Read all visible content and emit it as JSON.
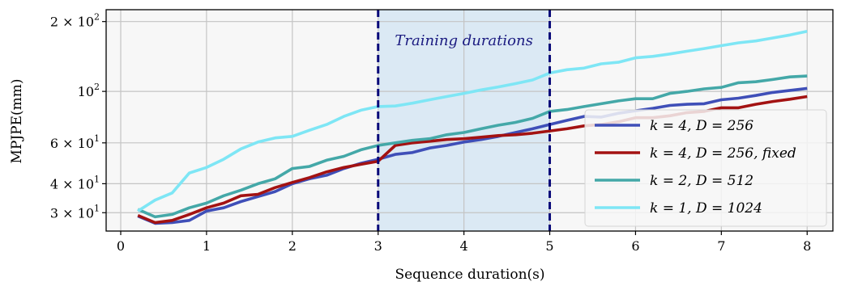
{
  "chart_data": {
    "type": "line",
    "title": "",
    "xlabel": "Sequence duration(s)",
    "ylabel": "MPJPE(mm)",
    "xlim": [
      -0.17,
      8.3
    ],
    "ylim": [
      25,
      225
    ],
    "yscale": "log",
    "grid": true,
    "legend_position": "lower-right",
    "x_ticks": [
      0,
      1,
      2,
      3,
      4,
      5,
      6,
      7,
      8
    ],
    "x_tick_labels": [
      "0",
      "1",
      "2",
      "3",
      "4",
      "5",
      "6",
      "7",
      "8"
    ],
    "y_ticks": [
      {
        "value": 30,
        "base": "3 × 10",
        "exp": "1"
      },
      {
        "value": 40,
        "base": "4 × 10",
        "exp": "1"
      },
      {
        "value": 60,
        "base": "6 × 10",
        "exp": "1"
      },
      {
        "value": 100,
        "base": "10",
        "exp": "2"
      },
      {
        "value": 200,
        "base": "2 × 10",
        "exp": "2"
      }
    ],
    "annotation": {
      "text": "Training durations",
      "x_start": 3,
      "x_end": 5,
      "span_color": "#dbe9f4",
      "line_color": "#0a0a7a"
    },
    "x": [
      0.2,
      0.4,
      0.6,
      0.8,
      1.0,
      1.2,
      1.4,
      1.6,
      1.8,
      2.0,
      2.2,
      2.4,
      2.6,
      2.8,
      3.0,
      3.2,
      3.4,
      3.6,
      3.8,
      4.0,
      4.2,
      4.4,
      4.6,
      4.8,
      5.0,
      5.2,
      5.4,
      5.6,
      5.8,
      6.0,
      6.2,
      6.4,
      6.6,
      6.8,
      7.0,
      7.2,
      7.4,
      7.6,
      7.8,
      8.0
    ],
    "series": [
      {
        "name": "k = 4, D = 256",
        "color": "#3f4fb8",
        "values": [
          29,
          27,
          27.2,
          27.8,
          30.5,
          31.5,
          33.5,
          35.2,
          37,
          40,
          42,
          43.5,
          46.5,
          49,
          51,
          53.5,
          54.5,
          57,
          58.5,
          60.5,
          62,
          64,
          66.5,
          69,
          72,
          75,
          78,
          77.5,
          80.5,
          82.5,
          84.5,
          87,
          88,
          88.5,
          92,
          93.5,
          96,
          99,
          101,
          103
        ]
      },
      {
        "name": "k = 4, D = 256, fixed",
        "color": "#a31212",
        "values": [
          29.2,
          27.2,
          27.8,
          29.5,
          31.5,
          33,
          35.5,
          36,
          38.5,
          40.5,
          42.5,
          45,
          47,
          48.5,
          50,
          58.5,
          60,
          61,
          62,
          62.5,
          63.5,
          64.5,
          65,
          66,
          67.5,
          69,
          71,
          72,
          74,
          77,
          77,
          78.5,
          81,
          82,
          85,
          85,
          88,
          90.5,
          92.5,
          95
        ]
      },
      {
        "name": "k = 2, D = 512",
        "color": "#44a8a8",
        "values": [
          31,
          28.8,
          29.5,
          31.5,
          33,
          35.5,
          37.5,
          40,
          42,
          46.5,
          47.5,
          50.5,
          52.5,
          56,
          58.5,
          60,
          61.5,
          62.5,
          65,
          66.5,
          69,
          71.5,
          73.5,
          76.5,
          82,
          83.5,
          86,
          88.5,
          91,
          93,
          93,
          98,
          100,
          102.5,
          104,
          109,
          110,
          112.5,
          115.5,
          116.5
        ]
      },
      {
        "name": "k = 1, D = 1024",
        "color": "#7ee6f5",
        "values": [
          30.5,
          34,
          36.5,
          44.5,
          47,
          51,
          56.5,
          60.5,
          63,
          64,
          68,
          72,
          78,
          83,
          86,
          86.5,
          89,
          92,
          95,
          98,
          101.5,
          104.5,
          108,
          112,
          120,
          124,
          126,
          131.5,
          133.5,
          139.5,
          141.5,
          145,
          149,
          153,
          157.5,
          162,
          165,
          170,
          175,
          181.5
        ]
      }
    ]
  }
}
